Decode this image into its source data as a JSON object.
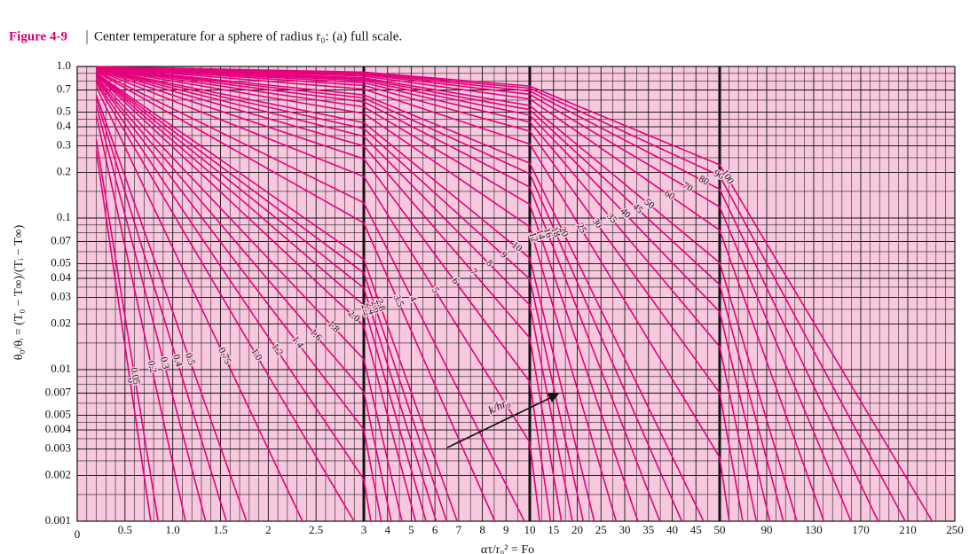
{
  "chart_data": {
    "type": "line",
    "title_label": "Figure 4-9",
    "title": "Center temperature for a sphere of radius r₀: (a) full scale.",
    "ylabel": "θ₀/θᵢ = (T₀ − T∞)/(Tᵢ − T∞)",
    "xlabel": "ατ/r₀² = Fo",
    "annotation": "k/hr₀",
    "yscale": "log",
    "xscale": "piecewise",
    "xbreaks": [
      3,
      10,
      50
    ],
    "xlim": [
      0,
      250
    ],
    "ylim": [
      0.001,
      1
    ],
    "grid": true,
    "line_color": "#e5007d",
    "background": "#f8c8de",
    "xticks": [
      0,
      0.5,
      {
        "value": 1,
        "label": "1.0"
      },
      1.5,
      2,
      2.5,
      3,
      4,
      5,
      6,
      7,
      8,
      9,
      10,
      15,
      20,
      25,
      30,
      35,
      40,
      45,
      50,
      90,
      130,
      170,
      210,
      250
    ],
    "yticks": [
      {
        "value": 1,
        "label": "1.0"
      },
      0.7,
      0.5,
      0.4,
      0.3,
      0.2,
      0.1,
      0.07,
      0.05,
      0.04,
      0.03,
      0.02,
      0.01,
      0.007,
      0.005,
      0.004,
      0.003,
      0.002,
      0.001
    ],
    "series": [
      {
        "name": "0",
        "x": [
          0.2,
          0.77
        ],
        "values": [
          0.278,
          0.001
        ]
      },
      {
        "name": "0.05",
        "x": [
          0.2,
          0.847
        ],
        "values": [
          0.33,
          0.001
        ]
      },
      {
        "name": "0.2",
        "x": [
          0.2,
          1.133
        ],
        "values": [
          0.477,
          0.001
        ]
      },
      {
        "name": "0.3",
        "x": [
          0.2,
          1.344
        ],
        "values": [
          0.554,
          0.001
        ]
      },
      {
        "name": "0.4",
        "x": [
          0.2,
          1.562
        ],
        "values": [
          0.612,
          0.001
        ]
      },
      {
        "name": "0.5",
        "x": [
          0.2,
          1.773
        ],
        "values": [
          0.649,
          0.001
        ]
      },
      {
        "name": "0.75",
        "x": [
          0.2,
          2.358
        ],
        "values": [
          0.737,
          0.001
        ]
      },
      {
        "name": "1.0",
        "x": [
          0.2,
          2.898
        ],
        "values": [
          0.778,
          0.001
        ]
      },
      {
        "name": "1.2",
        "x": [
          0.2,
          3,
          3.294
        ],
        "values": [
          0.798,
          0.00189,
          0.001
        ]
      },
      {
        "name": "1.4",
        "x": [
          0.2,
          3,
          3.732
        ],
        "values": [
          0.821,
          0.00402,
          0.001
        ]
      },
      {
        "name": "1.6",
        "x": [
          0.2,
          3,
          4.156
        ],
        "values": [
          0.833,
          0.00714,
          0.001
        ]
      },
      {
        "name": "1.8",
        "x": [
          0.2,
          3,
          4.609
        ],
        "values": [
          0.85,
          0.0117,
          0.001
        ]
      },
      {
        "name": "2.0",
        "x": [
          0.2,
          3,
          5.183
        ],
        "values": [
          0.872,
          0.0194,
          0.001
        ]
      },
      {
        "name": "2.2",
        "x": [
          0.2,
          3,
          5.624
        ],
        "values": [
          0.88,
          0.0266,
          0.001
        ]
      },
      {
        "name": "2.4",
        "x": [
          0.2,
          3,
          6.053
        ],
        "values": [
          0.888,
          0.0345,
          0.001
        ]
      },
      {
        "name": "2.6",
        "x": [
          0.2,
          3,
          6.493
        ],
        "values": [
          0.894,
          0.0435,
          0.001
        ]
      },
      {
        "name": "2.8",
        "x": [
          0.2,
          3,
          6.939
        ],
        "values": [
          0.903,
          0.0534,
          0.001
        ]
      },
      {
        "name": "3.5",
        "x": [
          0.2,
          3,
          8.524
        ],
        "values": [
          0.922,
          0.0927,
          0.001
        ]
      },
      {
        "name": "4",
        "x": [
          0.2,
          3,
          9.776
        ],
        "values": [
          0.932,
          0.126,
          0.001
        ]
      },
      {
        "name": "5",
        "x": [
          0.2,
          3,
          10,
          12.08
        ],
        "values": [
          0.944,
          0.188,
          0.00331,
          0.001
        ]
      },
      {
        "name": "6",
        "x": [
          0.2,
          3,
          10,
          14.38
        ],
        "values": [
          0.953,
          0.246,
          0.00832,
          0.001
        ]
      },
      {
        "name": "7",
        "x": [
          0.2,
          3,
          10,
          16.68
        ],
        "values": [
          0.96,
          0.299,
          0.0162,
          0.001
        ]
      },
      {
        "name": "8",
        "x": [
          0.2,
          3,
          10,
          18.98
        ],
        "values": [
          0.964,
          0.346,
          0.0267,
          0.001
        ]
      },
      {
        "name": "9",
        "x": [
          0.2,
          3,
          10,
          21.28
        ],
        "values": [
          0.968,
          0.389,
          0.0396,
          0.001
        ]
      },
      {
        "name": "10",
        "x": [
          0.2,
          3,
          10,
          23.59
        ],
        "values": [
          0.971,
          0.426,
          0.0544,
          0.001
        ]
      },
      {
        "name": "12",
        "x": [
          0.2,
          3,
          10,
          28.19
        ],
        "values": [
          0.976,
          0.49,
          0.0876,
          0.001
        ]
      },
      {
        "name": "14",
        "x": [
          0.2,
          3,
          10,
          32.79
        ],
        "values": [
          0.979,
          0.542,
          0.123,
          0.001
        ]
      },
      {
        "name": "16",
        "x": [
          0.2,
          3,
          10,
          37.4
        ],
        "values": [
          0.982,
          0.584,
          0.16,
          0.001
        ]
      },
      {
        "name": "18",
        "x": [
          0.2,
          3,
          10,
          42.02
        ],
        "values": [
          0.984,
          0.62,
          0.196,
          0.001
        ]
      },
      {
        "name": "20",
        "x": [
          0.2,
          3,
          10,
          46.62
        ],
        "values": [
          0.985,
          0.65,
          0.23,
          0.001
        ]
      },
      {
        "name": "25",
        "x": [
          0.2,
          3,
          10,
          50,
          58.15
        ],
        "values": [
          0.988,
          0.708,
          0.308,
          0.00264,
          0.001
        ]
      },
      {
        "name": "30",
        "x": [
          0.2,
          3,
          10,
          50,
          69.64
        ],
        "values": [
          0.99,
          0.75,
          0.374,
          0.00703,
          0.001
        ]
      },
      {
        "name": "35",
        "x": [
          0.2,
          3,
          10,
          50,
          81.17
        ],
        "values": [
          0.992,
          0.781,
          0.43,
          0.0142,
          0.001
        ]
      },
      {
        "name": "40",
        "x": [
          0.2,
          3,
          10,
          50,
          92.67
        ],
        "values": [
          0.993,
          0.805,
          0.478,
          0.0241,
          0.001
        ]
      },
      {
        "name": "45",
        "x": [
          0.2,
          3,
          10,
          50,
          104.2
        ],
        "values": [
          0.993,
          0.825,
          0.518,
          0.0364,
          0.001
        ]
      },
      {
        "name": "50",
        "x": [
          0.2,
          3,
          10,
          50,
          115.7
        ],
        "values": [
          0.994,
          0.841,
          0.553,
          0.0507,
          0.001
        ]
      },
      {
        "name": "60",
        "x": [
          0.2,
          3,
          10,
          50,
          138.7
        ],
        "values": [
          0.995,
          0.865,
          0.611,
          0.0832,
          0.001
        ]
      },
      {
        "name": "70",
        "x": [
          0.2,
          3,
          10,
          50,
          161.7
        ],
        "values": [
          0.996,
          0.883,
          0.655,
          0.1185,
          0.001
        ]
      },
      {
        "name": "80",
        "x": [
          0.2,
          3,
          10,
          50,
          184.8
        ],
        "values": [
          0.996,
          0.897,
          0.69,
          0.1546,
          0.001
        ]
      },
      {
        "name": "90",
        "x": [
          0.2,
          3,
          10,
          50,
          207.8
        ],
        "values": [
          0.997,
          0.908,
          0.719,
          0.19,
          0.001
        ]
      },
      {
        "name": "100",
        "x": [
          0.2,
          3,
          10,
          50,
          230.8
        ],
        "values": [
          0.997,
          0.917,
          0.743,
          0.2245,
          0.001
        ]
      }
    ]
  }
}
